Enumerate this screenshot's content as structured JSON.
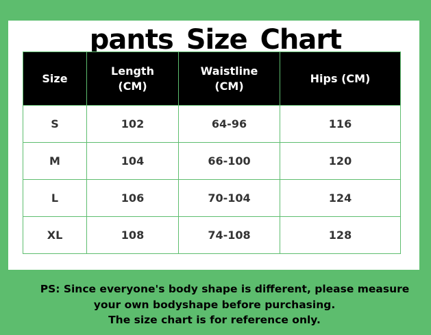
{
  "title": "pants Size Chart",
  "table": {
    "headers": [
      "Size",
      "Length\n(CM)",
      "Waistline\n(CM)",
      "Hips (CM)"
    ],
    "rows": [
      [
        "S",
        "102",
        "64-96",
        "116"
      ],
      [
        "M",
        "104",
        "66-100",
        "120"
      ],
      [
        "L",
        "106",
        "70-104",
        "124"
      ],
      [
        "XL",
        "108",
        "74-108",
        "128"
      ]
    ]
  },
  "note": {
    "line1": "PS: Since everyone's body shape is different, please measure",
    "line2": "your own bodyshape before purchasing.",
    "line3": "The size chart is for reference only."
  },
  "colors": {
    "background": "#5dbd6e",
    "header": "#000000",
    "border": "#5dbd6e"
  }
}
